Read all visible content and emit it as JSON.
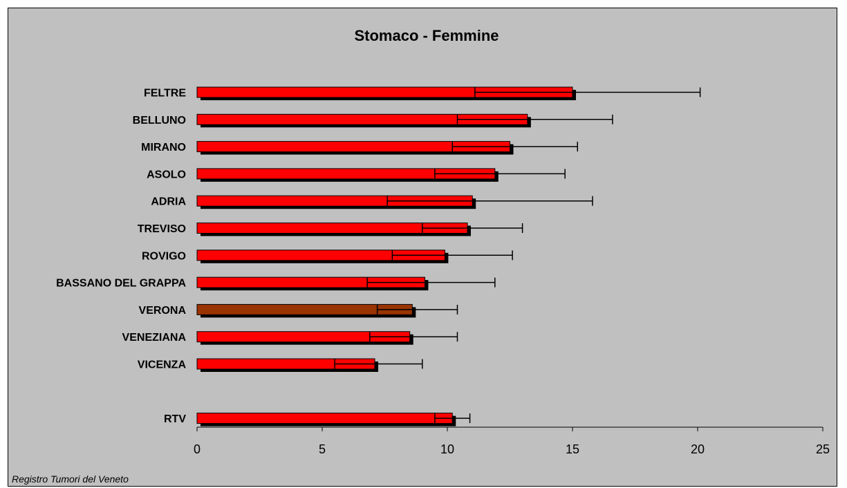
{
  "chart_data": {
    "type": "bar",
    "orientation": "horizontal",
    "title": "Stomaco - Femmine",
    "categories": [
      "FELTRE",
      "BELLUNO",
      "MIRANO",
      "ASOLO",
      "ADRIA",
      "TREVISO",
      "ROVIGO",
      "BASSANO DEL GRAPPA",
      "VERONA",
      "VENEZIANA",
      "VICENZA",
      "RTV"
    ],
    "values": [
      15.0,
      13.2,
      12.5,
      11.9,
      11.0,
      10.8,
      9.9,
      9.1,
      8.6,
      8.5,
      7.1,
      10.2
    ],
    "ci_low": [
      11.1,
      10.4,
      10.2,
      9.5,
      7.6,
      9.0,
      7.8,
      6.8,
      7.2,
      6.9,
      5.5,
      9.5
    ],
    "ci_high": [
      20.1,
      16.6,
      15.2,
      14.7,
      15.8,
      13.0,
      12.6,
      11.9,
      10.4,
      10.4,
      9.0,
      10.9
    ],
    "highlight": "VERONA",
    "xlim": [
      0,
      25
    ],
    "xticks": [
      "0",
      "5",
      "10",
      "15",
      "20",
      "25"
    ],
    "grid": false,
    "colors": {
      "bar": "#ff0000",
      "highlight": "#993300",
      "shadow": "#000000",
      "background": "#c0c0c0"
    }
  },
  "footer": {
    "source": "Registro Tumori del Veneto"
  }
}
